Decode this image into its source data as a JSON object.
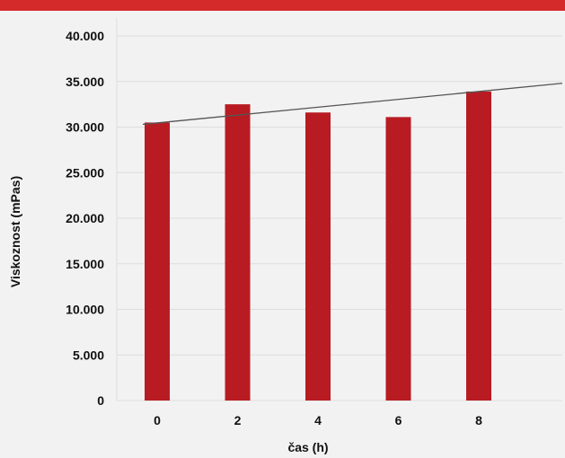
{
  "chart_data": {
    "type": "bar",
    "title": "",
    "xlabel": "čas (h)",
    "ylabel": "Viskoznost (mPas)",
    "categories": [
      "0",
      "2",
      "4",
      "6",
      "8"
    ],
    "values": [
      30500,
      32500,
      31600,
      31100,
      33900
    ],
    "ylim": [
      0,
      40000
    ],
    "y_ticks": [
      0,
      5000,
      10000,
      15000,
      20000,
      25000,
      30000,
      35000,
      40000
    ],
    "y_tick_labels": [
      "0",
      "5.000",
      "10.000",
      "15.000",
      "20.000",
      "25.000",
      "30.000",
      "35.000",
      "40.000"
    ],
    "trendline": {
      "type": "linear",
      "start_value": 30300,
      "end_value": 34800
    },
    "grid": true,
    "legend": "none",
    "colors": {
      "bar": "#b81c22",
      "trendline": "#555555",
      "grid": "#dddddd",
      "top_band": "#d42a2a",
      "background": "#f2f2f2"
    }
  }
}
